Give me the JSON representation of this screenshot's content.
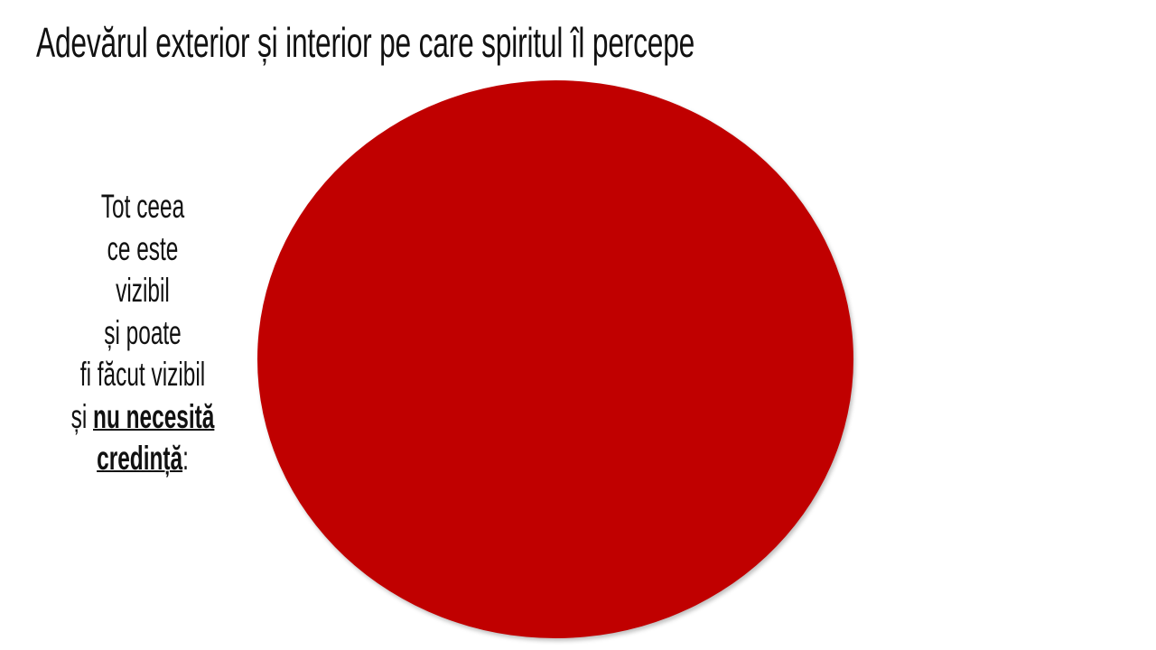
{
  "slide": {
    "title": "Adevărul exterior și interior pe care spiritul îl percepe",
    "side_text": {
      "lines": [
        "Tot ceea",
        "ce este",
        "vizibil",
        "și poate",
        "fi făcut vizibil"
      ],
      "last_prefix": "și ",
      "emphasis_1": "nu necesită",
      "emphasis_2": "credință",
      "suffix": ":"
    },
    "circle_color": "#C00000"
  }
}
